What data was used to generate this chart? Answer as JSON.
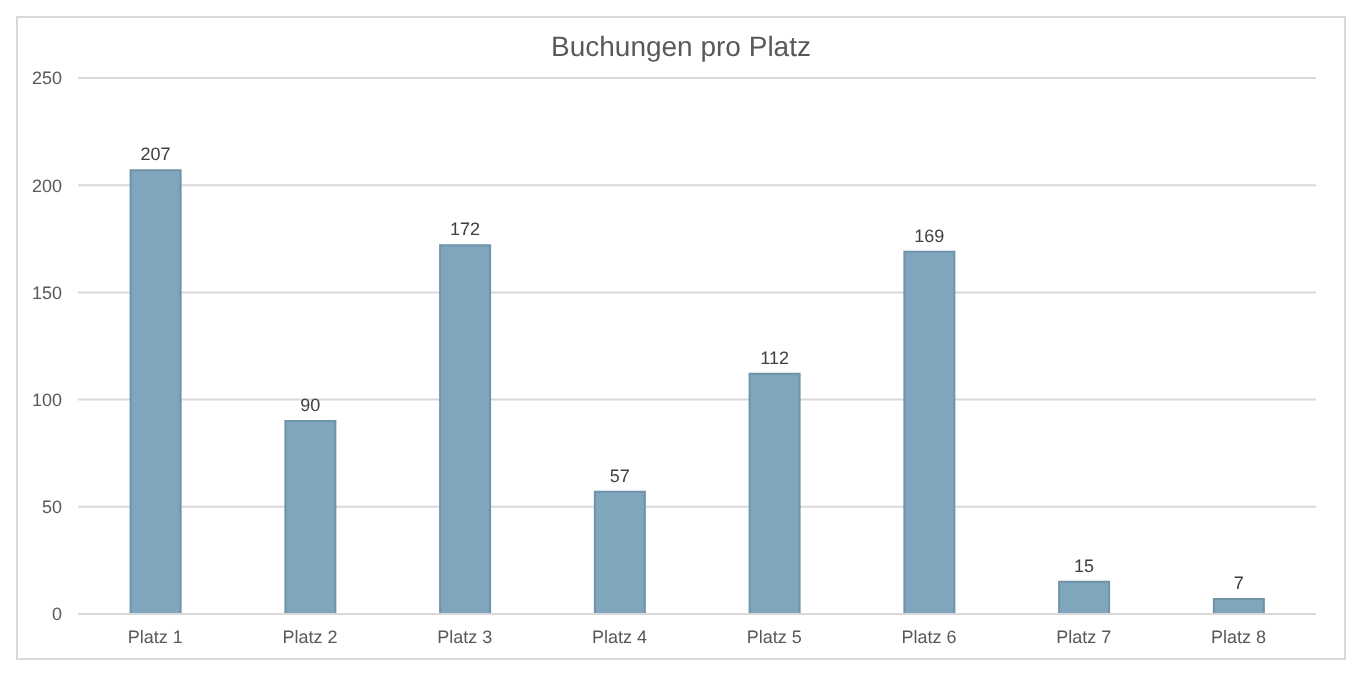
{
  "chart_data": {
    "type": "bar",
    "title": "Buchungen pro Platz",
    "categories": [
      "Platz 1",
      "Platz 2",
      "Platz 3",
      "Platz 4",
      "Platz 5",
      "Platz 6",
      "Platz 7",
      "Platz 8"
    ],
    "values": [
      207,
      90,
      172,
      57,
      112,
      169,
      15,
      7
    ],
    "color": "#7fa6bd",
    "ylim": [
      0,
      250
    ],
    "yticks": [
      0,
      50,
      100,
      150,
      200,
      250
    ],
    "grid": "y",
    "data_labels": true
  }
}
